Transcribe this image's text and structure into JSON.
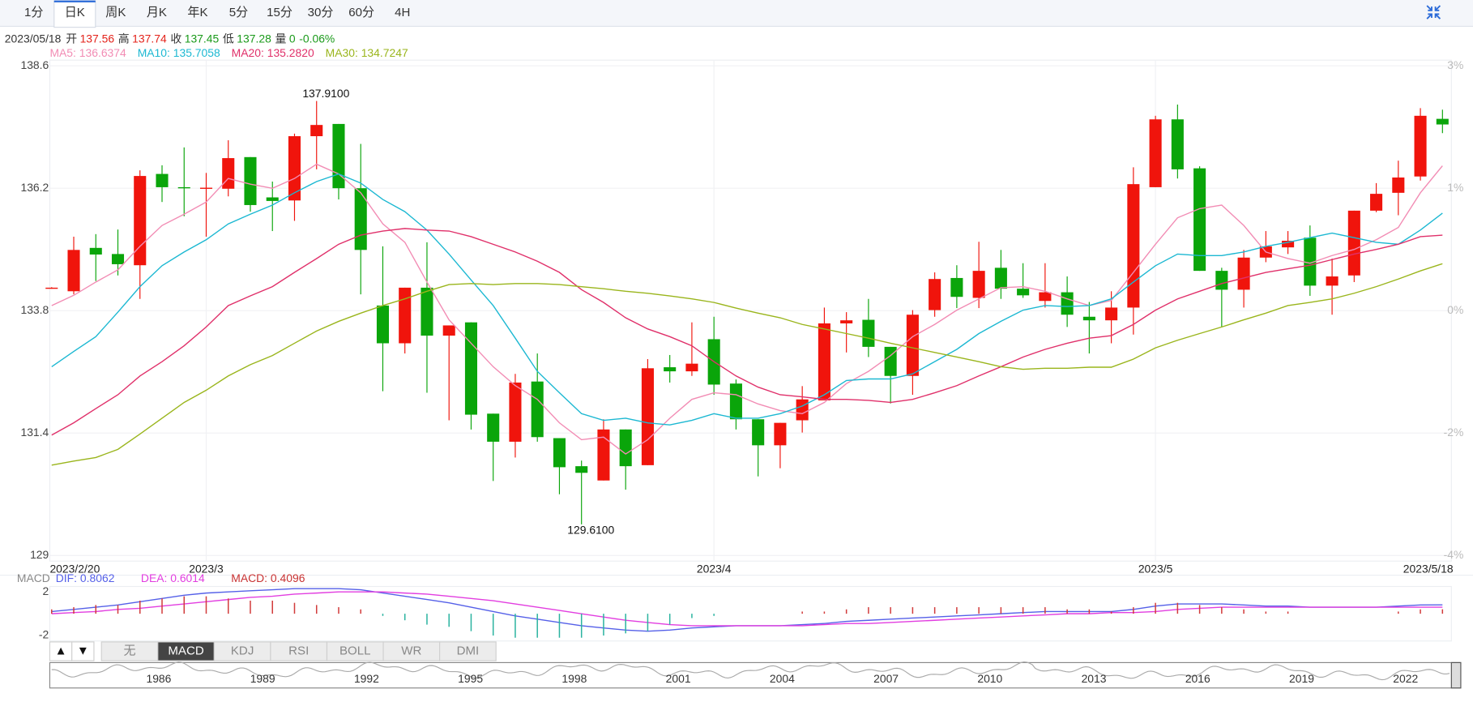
{
  "tabs": [
    "1分",
    "日K",
    "周K",
    "月K",
    "年K",
    "5分",
    "15分",
    "30分",
    "60分",
    "4H"
  ],
  "active_tab": "日K",
  "header": {
    "date": "2023/05/18",
    "items": [
      {
        "label": "开",
        "value": "137.56"
      },
      {
        "label": "高",
        "value": "137.74"
      },
      {
        "label": "收",
        "value": "137.45"
      },
      {
        "label": "低",
        "value": "137.28"
      },
      {
        "label": "量",
        "value": "0"
      }
    ],
    "change": "-0.06%"
  },
  "chart_data": [
    {
      "type": "candlestick",
      "categories": [
        "2023/2/20",
        null,
        null,
        null,
        null,
        null,
        null,
        "2023/3",
        null,
        null,
        null,
        null,
        null,
        null,
        null,
        null,
        null,
        null,
        null,
        null,
        null,
        null,
        null,
        null,
        null,
        null,
        null,
        null,
        null,
        null,
        "2023/4",
        null,
        null,
        null,
        null,
        null,
        null,
        null,
        null,
        null,
        null,
        null,
        null,
        null,
        null,
        null,
        null,
        null,
        null,
        null,
        "2023/5",
        null,
        null,
        null,
        null,
        null,
        null,
        null,
        null,
        null,
        null,
        null,
        null,
        "2023/5/18"
      ],
      "open": [
        134.24,
        134.18,
        135.03,
        134.91,
        134.69,
        136.48,
        136.22,
        136.2,
        136.19,
        136.81,
        136.02,
        135.96,
        137.22,
        137.46,
        136.2,
        133.9,
        133.16,
        134.25,
        133.31,
        133.57,
        131.78,
        131.23,
        132.41,
        131.3,
        130.75,
        130.47,
        131.47,
        130.77,
        132.69,
        132.61,
        133.24,
        132.37,
        131.67,
        131.16,
        131.65,
        132.04,
        133.55,
        133.62,
        133.09,
        132.52,
        133.81,
        134.44,
        134.05,
        134.64,
        134.23,
        133.99,
        134.16,
        133.68,
        133.61,
        133.86,
        136.22,
        137.55,
        136.59,
        134.58,
        134.21,
        134.84,
        135.04,
        135.23,
        134.29,
        134.49,
        135.76,
        136.11,
        136.43,
        137.56
      ],
      "high": [
        134.26,
        135.25,
        135.3,
        135.39,
        136.55,
        136.65,
        137.0,
        136.5,
        137.14,
        136.81,
        136.33,
        137.27,
        137.91,
        137.46,
        137.07,
        135.06,
        134.25,
        135.14,
        133.51,
        133.57,
        131.78,
        132.56,
        132.96,
        131.3,
        130.86,
        131.67,
        131.47,
        132.85,
        132.93,
        133.57,
        133.68,
        132.45,
        131.67,
        131.6,
        132.32,
        133.86,
        133.77,
        134.03,
        133.09,
        133.81,
        134.55,
        134.69,
        135.15,
        134.99,
        134.73,
        134.73,
        134.47,
        133.97,
        134.18,
        136.61,
        137.62,
        137.84,
        136.63,
        134.64,
        134.99,
        135.36,
        135.36,
        135.47,
        134.82,
        135.76,
        136.3,
        136.74,
        137.77,
        137.74
      ],
      "low": [
        134.23,
        134.12,
        134.38,
        134.49,
        134.03,
        135.93,
        135.65,
        135.25,
        136.04,
        135.74,
        135.36,
        135.56,
        136.57,
        135.98,
        134.12,
        132.22,
        132.96,
        132.19,
        131.65,
        131.47,
        130.46,
        130.92,
        131.23,
        130.2,
        129.61,
        130.47,
        130.29,
        130.77,
        132.39,
        132.52,
        132.15,
        131.47,
        130.55,
        130.71,
        131.41,
        132.04,
        132.98,
        132.89,
        131.98,
        132.15,
        133.68,
        133.85,
        133.85,
        134.03,
        134.05,
        133.86,
        133.48,
        132.96,
        133.16,
        133.33,
        136.22,
        136.39,
        134.58,
        133.48,
        133.86,
        134.75,
        134.91,
        134.09,
        133.72,
        134.36,
        135.73,
        135.67,
        136.35,
        137.28
      ],
      "close": [
        134.25,
        134.99,
        134.9,
        134.71,
        136.44,
        136.22,
        136.21,
        136.21,
        136.79,
        135.87,
        135.95,
        137.22,
        137.44,
        136.2,
        134.99,
        133.16,
        134.25,
        133.31,
        133.51,
        131.76,
        131.23,
        132.39,
        131.32,
        130.73,
        130.62,
        131.47,
        130.75,
        132.67,
        132.61,
        132.76,
        132.35,
        131.67,
        131.16,
        131.6,
        132.06,
        133.55,
        133.61,
        133.09,
        132.52,
        133.72,
        134.42,
        134.07,
        134.58,
        134.23,
        134.1,
        134.16,
        133.72,
        133.61,
        133.86,
        136.28,
        137.55,
        136.57,
        134.58,
        134.21,
        134.84,
        135.06,
        135.17,
        134.29,
        134.47,
        135.76,
        136.09,
        136.41,
        137.62,
        137.45
      ],
      "up_color": "#f0140c",
      "down_color": "#0aa50a",
      "series": [
        {
          "name": "MA5: 136.6374",
          "color": "#f28cb4",
          "values": [
            133.9,
            134.1,
            134.36,
            134.6,
            135.06,
            135.47,
            135.69,
            135.93,
            136.39,
            136.28,
            136.2,
            136.39,
            136.67,
            136.48,
            136.11,
            135.5,
            135.14,
            134.36,
            133.62,
            133.16,
            132.7,
            132.33,
            132.06,
            131.6,
            131.27,
            131.32,
            130.99,
            131.27,
            131.69,
            132.06,
            132.19,
            132.15,
            131.97,
            131.84,
            131.78,
            132.0,
            132.37,
            132.61,
            132.92,
            133.29,
            133.53,
            133.81,
            134.03,
            134.25,
            134.27,
            134.18,
            134.03,
            133.9,
            134.0,
            134.55,
            135.1,
            135.62,
            135.8,
            135.87,
            135.47,
            134.95,
            134.82,
            134.73,
            134.88,
            135.0,
            135.19,
            135.43,
            136.11,
            136.64
          ]
        },
        {
          "name": "MA10: 135.7058",
          "color": "#1cb8d2",
          "values": [
            132.7,
            133.0,
            133.29,
            133.77,
            134.27,
            134.68,
            134.95,
            135.19,
            135.5,
            135.69,
            135.87,
            136.11,
            136.33,
            136.48,
            136.3,
            135.98,
            135.74,
            135.38,
            134.91,
            134.4,
            133.9,
            133.26,
            132.61,
            132.19,
            131.78,
            131.65,
            131.69,
            131.6,
            131.56,
            131.65,
            131.78,
            131.69,
            131.69,
            131.78,
            131.93,
            132.15,
            132.43,
            132.46,
            132.46,
            132.56,
            132.8,
            133.04,
            133.35,
            133.59,
            133.81,
            133.9,
            133.88,
            133.9,
            134.03,
            134.36,
            134.68,
            134.91,
            134.88,
            134.88,
            134.95,
            135.06,
            135.14,
            135.23,
            135.32,
            135.23,
            135.14,
            135.1,
            135.38,
            135.71
          ]
        },
        {
          "name": "MA20: 135.2820",
          "color": "#e0306a",
          "values": [
            131.36,
            131.6,
            131.88,
            132.15,
            132.52,
            132.8,
            133.11,
            133.48,
            133.9,
            134.09,
            134.27,
            134.55,
            134.82,
            135.1,
            135.28,
            135.36,
            135.41,
            135.38,
            135.36,
            135.25,
            135.1,
            134.95,
            134.77,
            134.55,
            134.21,
            133.96,
            133.66,
            133.44,
            133.29,
            133.11,
            132.8,
            132.52,
            132.3,
            132.15,
            132.11,
            132.06,
            132.06,
            132.04,
            132.0,
            132.06,
            132.19,
            132.33,
            132.52,
            132.7,
            132.89,
            133.04,
            133.16,
            133.26,
            133.31,
            133.53,
            133.81,
            134.03,
            134.18,
            134.33,
            134.44,
            134.55,
            134.62,
            134.69,
            134.8,
            134.91,
            135.0,
            135.1,
            135.25,
            135.28
          ]
        },
        {
          "name": "MA30: 134.7247",
          "color": "#9ab51c",
          "values": [
            130.77,
            130.85,
            130.92,
            131.08,
            131.38,
            131.69,
            132.0,
            132.24,
            132.52,
            132.74,
            132.92,
            133.16,
            133.4,
            133.59,
            133.75,
            133.9,
            134.03,
            134.18,
            134.31,
            134.33,
            134.31,
            134.33,
            134.33,
            134.31,
            134.27,
            134.23,
            134.18,
            134.14,
            134.09,
            134.03,
            133.96,
            133.85,
            133.75,
            133.66,
            133.53,
            133.44,
            133.35,
            133.26,
            133.16,
            133.07,
            132.98,
            132.89,
            132.8,
            132.7,
            132.65,
            132.67,
            132.67,
            132.69,
            132.69,
            132.85,
            133.07,
            133.22,
            133.35,
            133.48,
            133.62,
            133.75,
            133.9,
            133.96,
            134.03,
            134.14,
            134.27,
            134.42,
            134.58,
            134.72
          ]
        }
      ],
      "annotations": [
        "137.9100",
        "129.6100"
      ],
      "ylim": [
        129,
        138.6
      ],
      "yticks": [
        138.6,
        136.2,
        133.8,
        131.4,
        129
      ],
      "y2ticks": [
        {
          "value": 3,
          "label": "3%"
        },
        {
          "value": 1,
          "label": "1%"
        },
        {
          "value": 0,
          "label": "0%"
        },
        {
          "value": -2,
          "label": "-2%"
        },
        {
          "value": -4,
          "label": "-4%"
        }
      ],
      "grid": true
    },
    {
      "type": "macd",
      "title": "MACD",
      "series": [
        {
          "name": "DIF: 0.8062",
          "color": "#5560e8",
          "values": [
            0.2,
            0.4,
            0.6,
            0.8,
            1.1,
            1.4,
            1.7,
            1.9,
            2.0,
            2.1,
            2.2,
            2.3,
            2.3,
            2.3,
            2.2,
            1.9,
            1.6,
            1.3,
            1.0,
            0.6,
            0.2,
            -0.2,
            -0.5,
            -0.8,
            -1.1,
            -1.3,
            -1.5,
            -1.6,
            -1.5,
            -1.3,
            -1.2,
            -1.1,
            -1.1,
            -1.1,
            -1.0,
            -0.9,
            -0.7,
            -0.6,
            -0.5,
            -0.4,
            -0.3,
            -0.2,
            -0.1,
            0.0,
            0.1,
            0.2,
            0.2,
            0.2,
            0.2,
            0.4,
            0.7,
            0.9,
            0.9,
            0.9,
            0.8,
            0.7,
            0.7,
            0.6,
            0.6,
            0.6,
            0.6,
            0.7,
            0.8,
            0.81
          ]
        },
        {
          "name": "DEA: 0.6014",
          "color": "#e23ee0",
          "values": [
            0.0,
            0.1,
            0.2,
            0.4,
            0.5,
            0.7,
            0.9,
            1.1,
            1.3,
            1.5,
            1.6,
            1.8,
            1.9,
            2.0,
            2.0,
            2.0,
            1.9,
            1.8,
            1.6,
            1.4,
            1.2,
            0.9,
            0.6,
            0.3,
            0.0,
            -0.3,
            -0.6,
            -0.8,
            -1.0,
            -1.1,
            -1.1,
            -1.1,
            -1.1,
            -1.1,
            -1.1,
            -1.0,
            -0.9,
            -0.9,
            -0.8,
            -0.7,
            -0.6,
            -0.5,
            -0.4,
            -0.3,
            -0.2,
            -0.1,
            0.0,
            0.0,
            0.1,
            0.1,
            0.2,
            0.4,
            0.5,
            0.6,
            0.6,
            0.6,
            0.6,
            0.6,
            0.6,
            0.6,
            0.6,
            0.6,
            0.6,
            0.6
          ]
        },
        {
          "name": "MACD: 0.4096",
          "color": "#c83232",
          "type": "bar",
          "values": [
            0.4,
            0.6,
            0.8,
            0.8,
            1.2,
            1.4,
            1.6,
            1.6,
            1.4,
            1.2,
            1.2,
            1.0,
            0.8,
            0.6,
            0.4,
            -0.2,
            -0.6,
            -1.0,
            -1.2,
            -1.6,
            -2.0,
            -2.2,
            -2.2,
            -2.2,
            -2.2,
            -2.0,
            -1.8,
            -1.6,
            -1.0,
            -0.4,
            -0.2,
            0.0,
            0.0,
            0.0,
            0.2,
            0.2,
            0.4,
            0.6,
            0.6,
            0.6,
            0.6,
            0.6,
            0.6,
            0.6,
            0.6,
            0.6,
            0.4,
            0.4,
            0.2,
            0.6,
            1.0,
            1.0,
            0.8,
            0.6,
            0.4,
            0.2,
            0.2,
            0.0,
            0.0,
            0.0,
            0.0,
            0.2,
            0.4,
            0.41
          ]
        }
      ],
      "up_color": "#d23c3c",
      "down_color": "#2bb3a0",
      "ylim": [
        -2.5,
        2.5
      ],
      "yticks": [
        2,
        -2
      ]
    }
  ],
  "indicator_tabs": [
    "▲",
    "▼",
    "无",
    "MACD",
    "KDJ",
    "RSI",
    "BOLL",
    "WR",
    "DMI"
  ],
  "active_indicator": "MACD",
  "navigator": {
    "labels": [
      "1986",
      "1989",
      "1992",
      "1995",
      "1998",
      "2001",
      "2004",
      "2007",
      "2010",
      "2013",
      "2016",
      "2019",
      "2022"
    ]
  }
}
